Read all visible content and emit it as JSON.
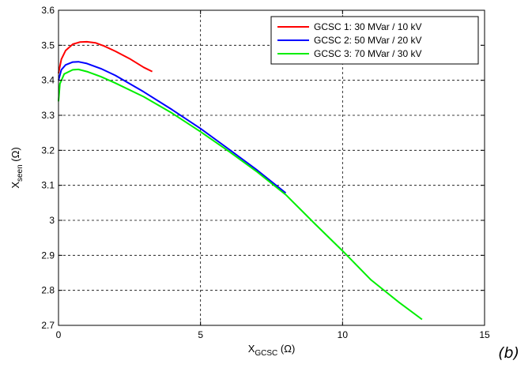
{
  "panel_label": "(b)",
  "chart_data": {
    "type": "line",
    "xlabel": {
      "main": "X",
      "sub": "GCSC",
      "unit": " (Ω)"
    },
    "ylabel": {
      "main": "X",
      "sub": "seen",
      "unit": " (Ω)"
    },
    "xlim": [
      0,
      15
    ],
    "ylim": [
      2.7,
      3.6
    ],
    "xticks": [
      0,
      5,
      10,
      15
    ],
    "xtick_labels": [
      "0",
      "5",
      "10",
      "15"
    ],
    "yticks": [
      2.7,
      2.8,
      2.9,
      3.0,
      3.1,
      3.2,
      3.3,
      3.4,
      3.5,
      3.6
    ],
    "ytick_labels": [
      "2.7",
      "2.8",
      "2.9",
      "3",
      "3.1",
      "3.2",
      "3.3",
      "3.4",
      "3.5",
      "3.6"
    ],
    "grid": true,
    "legend_position": "top-right",
    "series": [
      {
        "name": "GCSC 1: 30 MVar / 10 kV",
        "color": "#ff0000",
        "x": [
          0,
          0.1,
          0.25,
          0.5,
          0.75,
          1.0,
          1.3,
          1.6,
          2.0,
          2.5,
          3.0,
          3.3
        ],
        "y": [
          3.42,
          3.46,
          3.485,
          3.503,
          3.509,
          3.51,
          3.507,
          3.498,
          3.483,
          3.462,
          3.437,
          3.425
        ]
      },
      {
        "name": "GCSC 2: 50 MVar / 20 kV",
        "color": "#0000ff",
        "x": [
          0,
          0.1,
          0.25,
          0.5,
          0.7,
          1.0,
          1.5,
          2.0,
          3.0,
          4.0,
          5.0,
          6.0,
          7.0,
          8.0
        ],
        "y": [
          3.4,
          3.43,
          3.444,
          3.452,
          3.453,
          3.448,
          3.433,
          3.414,
          3.367,
          3.316,
          3.262,
          3.203,
          3.143,
          3.078
        ]
      },
      {
        "name": "GCSC 3: 70 MVar / 30 kV",
        "color": "#00ee00",
        "x": [
          0,
          0.05,
          0.2,
          0.5,
          0.7,
          1.0,
          1.5,
          2.0,
          3.0,
          4.0,
          5.0,
          6.0,
          7.0,
          8.0,
          9.0,
          10.0,
          11.0,
          12.0,
          12.8
        ],
        "y": [
          3.34,
          3.39,
          3.418,
          3.43,
          3.431,
          3.425,
          3.41,
          3.392,
          3.353,
          3.306,
          3.253,
          3.197,
          3.138,
          3.073,
          2.992,
          2.913,
          2.83,
          2.765,
          2.717
        ]
      }
    ]
  }
}
